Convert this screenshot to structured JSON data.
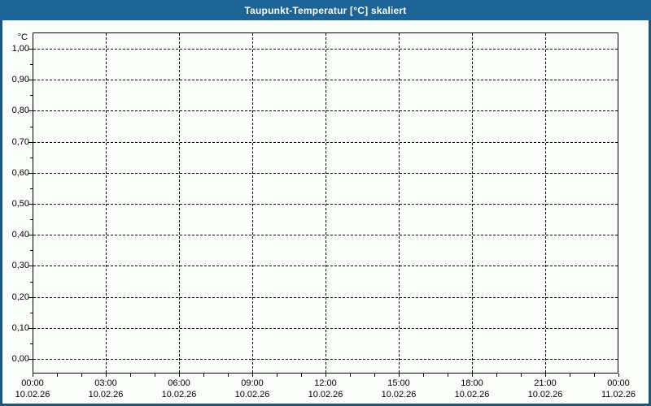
{
  "window": {
    "title": "Taupunkt-Temperatur [°C] skaliert",
    "title_bar_color": "#1d6496",
    "title_text_color": "#ffffff",
    "border_color": "#1b5583",
    "background_color": "#fbfdfa"
  },
  "chart_data": {
    "type": "line",
    "title": "Taupunkt-Temperatur [°C] skaliert",
    "xlabel": "",
    "ylabel": "°C",
    "series": [],
    "note": "chart area is empty – no data series plotted",
    "grid": {
      "style": "dashed",
      "color": "#000000",
      "on": true
    },
    "legend": null,
    "y_axis": {
      "min": 0.0,
      "max": 1.0,
      "major_step": 0.1,
      "minor_step": 0.05,
      "decimal_style": "comma",
      "ticks": [
        {
          "value": 1.0,
          "label": "1,00"
        },
        {
          "value": 0.9,
          "label": "0,90"
        },
        {
          "value": 0.8,
          "label": "0,80"
        },
        {
          "value": 0.7,
          "label": "0,70"
        },
        {
          "value": 0.6,
          "label": "0,60"
        },
        {
          "value": 0.5,
          "label": "0,50"
        },
        {
          "value": 0.4,
          "label": "0,40"
        },
        {
          "value": 0.3,
          "label": "0,30"
        },
        {
          "value": 0.2,
          "label": "0,20"
        },
        {
          "value": 0.1,
          "label": "0,10"
        },
        {
          "value": 0.0,
          "label": "0,00"
        }
      ]
    },
    "x_axis": {
      "unit": "time",
      "start": "10.02.26 00:00",
      "end": "11.02.26 00:00",
      "major_step_hours": 3,
      "minor_step_hours": 1,
      "total_hours": 24,
      "ticks": [
        {
          "hour": 0,
          "time": "00:00",
          "date": "10.02.26"
        },
        {
          "hour": 3,
          "time": "03:00",
          "date": "10.02.26"
        },
        {
          "hour": 6,
          "time": "06:00",
          "date": "10.02.26"
        },
        {
          "hour": 9,
          "time": "09:00",
          "date": "10.02.26"
        },
        {
          "hour": 12,
          "time": "12:00",
          "date": "10.02.26"
        },
        {
          "hour": 15,
          "time": "15:00",
          "date": "10.02.26"
        },
        {
          "hour": 18,
          "time": "18:00",
          "date": "10.02.26"
        },
        {
          "hour": 21,
          "time": "21:00",
          "date": "10.02.26"
        },
        {
          "hour": 24,
          "time": "00:00",
          "date": "11.02.26"
        }
      ]
    }
  }
}
